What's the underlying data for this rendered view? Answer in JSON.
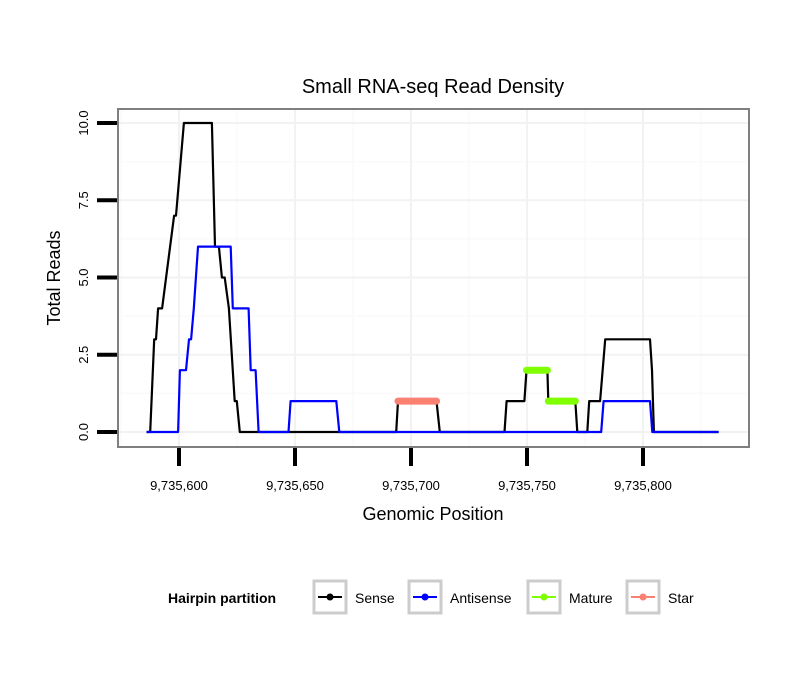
{
  "chart_data": {
    "type": "line",
    "title": "Small RNA-seq Read Density",
    "xlabel": "Genomic Position",
    "ylabel": "Total Reads",
    "xlim": [
      9735572,
      9735840
    ],
    "ylim": [
      -0.55,
      10.5
    ],
    "x_ticks": [
      9735600,
      9735650,
      9735700,
      9735750,
      9735800
    ],
    "x_tick_labels": [
      "9,735,600",
      "9,735,650",
      "9,735,700",
      "9,735,750",
      "9,735,800"
    ],
    "y_ticks": [
      0,
      2.5,
      5,
      7.5,
      10
    ],
    "y_tick_labels": [
      "0.0",
      "2.5",
      "5.0",
      "7.5",
      "10.0"
    ],
    "grid": true,
    "legend": {
      "title": "Hairpin partition",
      "placement": "bottom",
      "entries": [
        "Sense",
        "Antisense",
        "Mature",
        "Star"
      ]
    },
    "series": [
      {
        "name": "Sense",
        "color": "#000000",
        "points": [
          [
            9735586,
            0
          ],
          [
            9735587.6,
            0
          ],
          [
            9735589.3,
            3
          ],
          [
            9735590.1,
            3
          ],
          [
            9735591,
            4
          ],
          [
            9735592.7,
            4
          ],
          [
            9735597.9,
            7
          ],
          [
            9735598.7,
            7
          ],
          [
            9735602.1,
            10
          ],
          [
            9735614.2,
            10
          ],
          [
            9735615.5,
            6
          ],
          [
            9735617.2,
            6
          ],
          [
            9735618.5,
            5
          ],
          [
            9735619.7,
            5
          ],
          [
            9735621.5,
            4
          ],
          [
            9735624,
            1
          ],
          [
            9735624.9,
            1
          ],
          [
            9735626.2,
            0
          ],
          [
            9735693.6,
            0
          ],
          [
            9735694.4,
            1
          ],
          [
            9735711,
            1
          ],
          [
            9735712.4,
            0
          ],
          [
            9735740.3,
            0
          ],
          [
            9735741.2,
            1
          ],
          [
            9735748.9,
            1
          ],
          [
            9735749.8,
            2
          ],
          [
            9735758.8,
            2
          ],
          [
            9735759.2,
            1
          ],
          [
            9735770.8,
            1
          ],
          [
            9735771.7,
            0
          ],
          [
            9735776,
            0
          ],
          [
            9735776.8,
            1
          ],
          [
            9735781.5,
            1
          ],
          [
            9735783.7,
            3
          ],
          [
            9735803,
            3
          ],
          [
            9735803.9,
            2
          ],
          [
            9735804.7,
            0
          ],
          [
            9735832.6,
            0
          ]
        ]
      },
      {
        "name": "Antisense",
        "color": "#0000ff",
        "points": [
          [
            9735586,
            0
          ],
          [
            9735599.6,
            0
          ],
          [
            9735600.4,
            2
          ],
          [
            9735603,
            2
          ],
          [
            9735604.3,
            3
          ],
          [
            9735605.2,
            3
          ],
          [
            9735606.4,
            4
          ],
          [
            9735608.2,
            6
          ],
          [
            9735622.3,
            6
          ],
          [
            9735623.2,
            4
          ],
          [
            9735630,
            4
          ],
          [
            9735630.9,
            2
          ],
          [
            9735633,
            2
          ],
          [
            9735634.3,
            0
          ],
          [
            9735647.2,
            0
          ],
          [
            9735648.1,
            1
          ],
          [
            9735667.8,
            1
          ],
          [
            9735669.1,
            0
          ],
          [
            9735775,
            0
          ],
          [
            9735782,
            0
          ],
          [
            9735783,
            1
          ],
          [
            9735803,
            1
          ],
          [
            9735804,
            0
          ],
          [
            9735832.6,
            0
          ]
        ]
      },
      {
        "name": "Mature",
        "color": "#7fff00",
        "segments": [
          [
            [
              9735749.8,
              2
            ],
            [
              9735758.8,
              2
            ]
          ],
          [
            [
              9735759.2,
              1
            ],
            [
              9735770.8,
              1
            ]
          ]
        ]
      },
      {
        "name": "Star",
        "color": "#fa8072",
        "segments": [
          [
            [
              9735694.4,
              1
            ],
            [
              9735711,
              1
            ]
          ]
        ]
      }
    ]
  }
}
